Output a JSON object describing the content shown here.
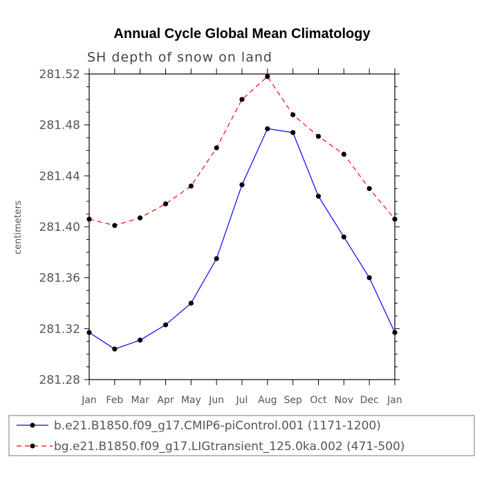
{
  "chart_data": {
    "type": "line",
    "title": "Annual Cycle Global Mean Climatology",
    "subtitle": "SH depth of snow on land",
    "ylabel": "centimeters",
    "xlabel": "",
    "categories": [
      "Jan",
      "Feb",
      "Mar",
      "Apr",
      "May",
      "Jun",
      "Jul",
      "Aug",
      "Sep",
      "Oct",
      "Nov",
      "Dec",
      "Jan"
    ],
    "ylim": [
      281.28,
      281.52
    ],
    "yticks": [
      "281.28",
      "281.32",
      "281.36",
      "281.40",
      "281.44",
      "281.48",
      "281.52"
    ],
    "series": [
      {
        "name": "b.e21.B1850.f09_g17.CMIP6-piControl.001 (1171-1200)",
        "color": "#0000ff",
        "style": "solid",
        "values": [
          281.317,
          281.304,
          281.311,
          281.323,
          281.34,
          281.375,
          281.433,
          281.477,
          281.474,
          281.424,
          281.392,
          281.36,
          281.317
        ]
      },
      {
        "name": "bg.e21.B1850.f09_g17.LIGtransient_125.0ka.002 (471-500)",
        "color": "#ff0000",
        "style": "dashed",
        "values": [
          281.406,
          281.401,
          281.407,
          281.418,
          281.432,
          281.462,
          281.5,
          281.518,
          281.488,
          281.471,
          281.457,
          281.43,
          281.406
        ]
      }
    ],
    "legend_position": "bottom"
  }
}
